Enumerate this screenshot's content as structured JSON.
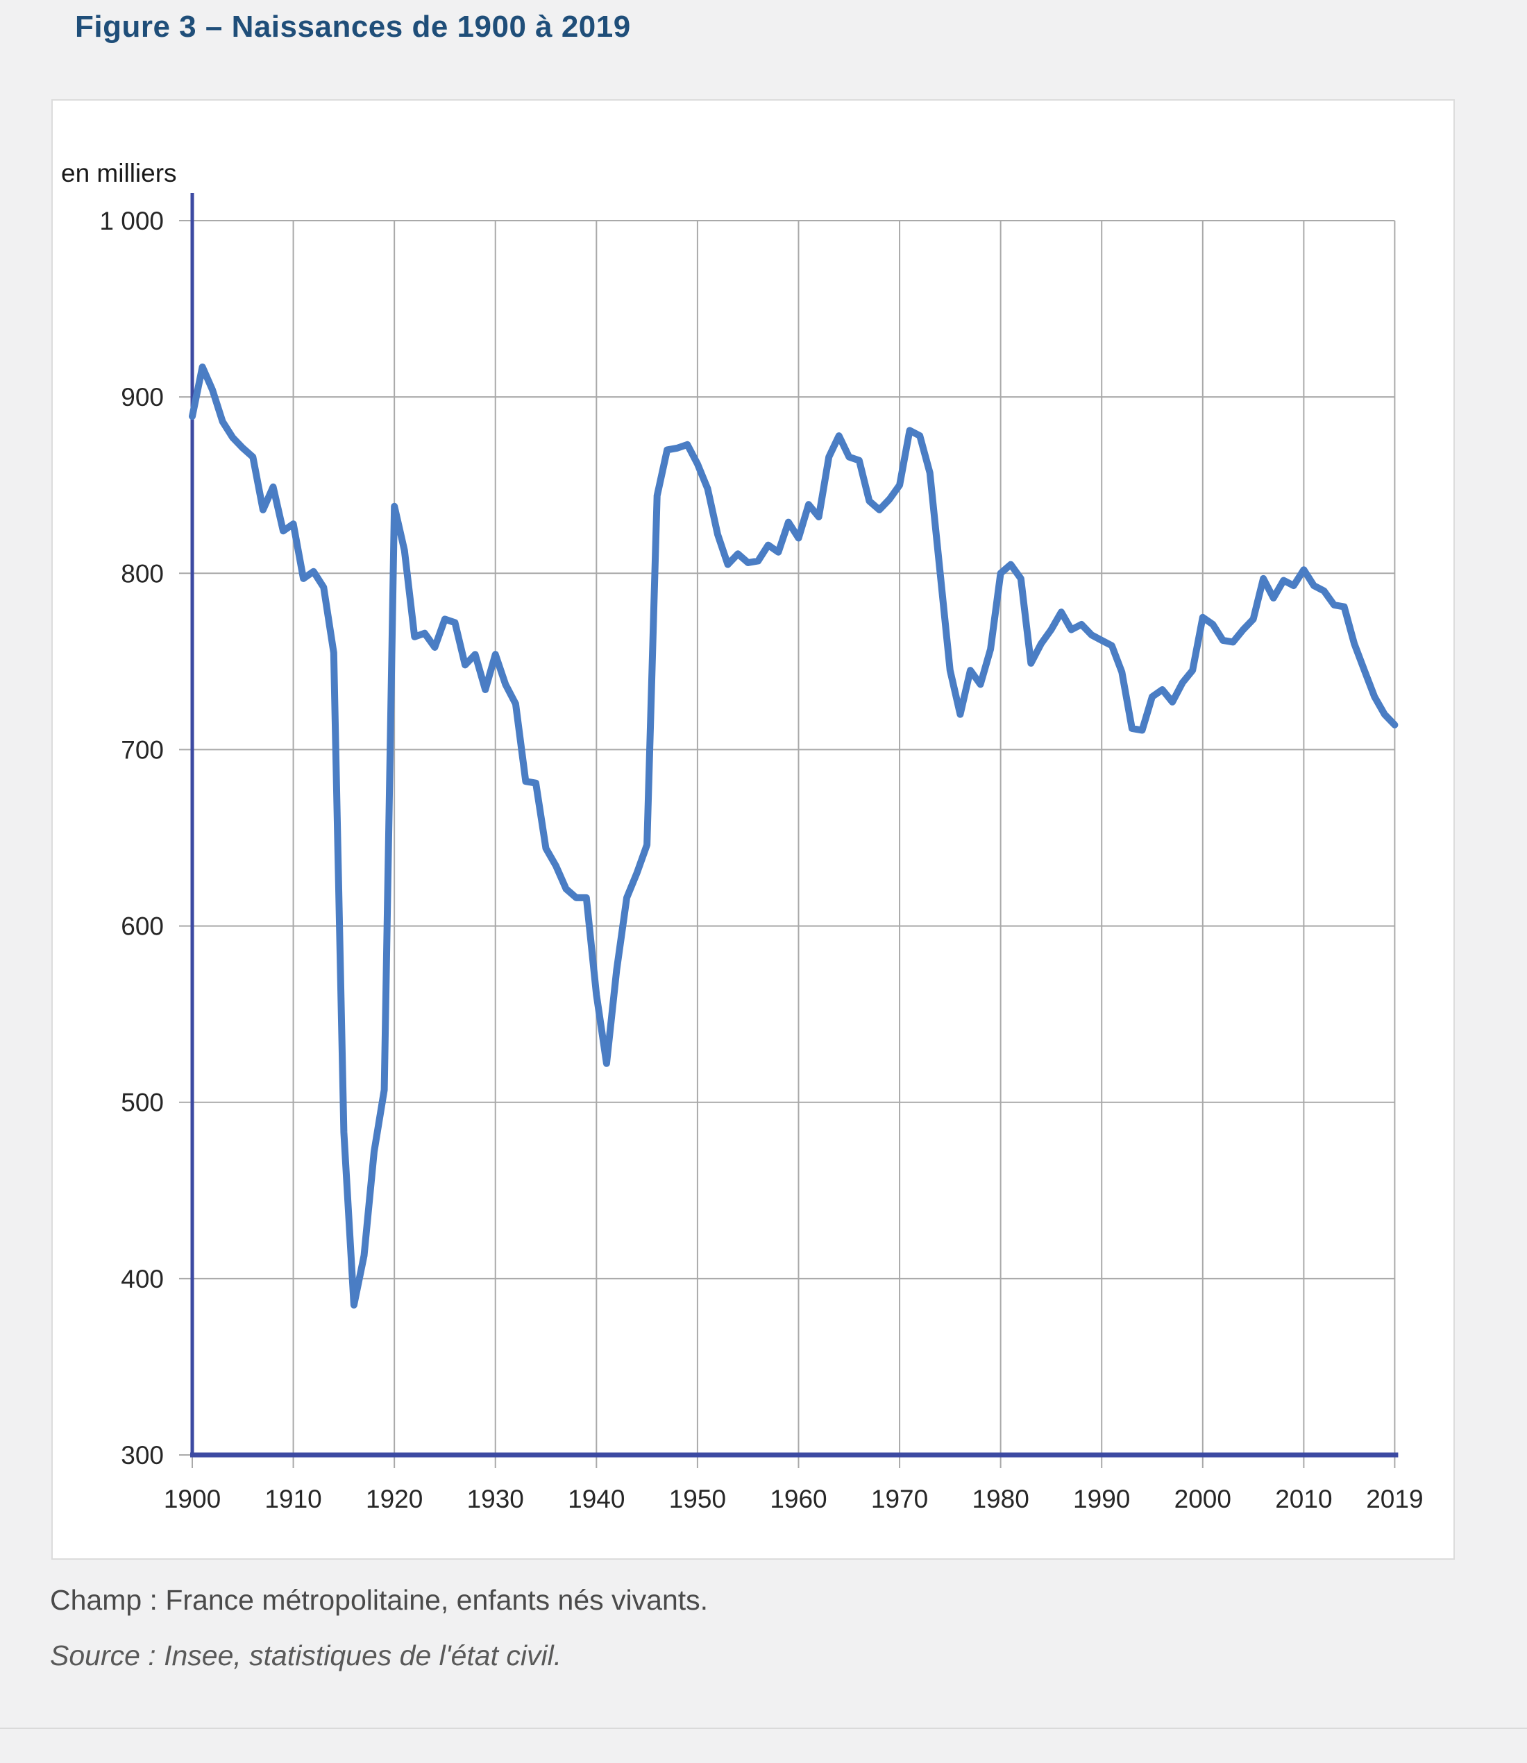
{
  "figure": {
    "title": "Figure 3 – Naissances de 1900 à 2019",
    "unit_label": "en milliers",
    "champ": "Champ : France métropolitaine, enfants nés vivants.",
    "source": "Source : Insee, statistiques de l'état civil."
  },
  "colors": {
    "page_background": "#f1f1f2",
    "panel_background": "#ffffff",
    "panel_border": "#dcdcdc",
    "title_color": "#1f4e79",
    "line_color": "#4a7dc4",
    "axis_color": "#3c4aa2",
    "grid_color": "#a9a9a9",
    "tick_label_color": "#262626"
  },
  "chart_data": {
    "type": "line",
    "title": "Naissances de 1900 à 2019",
    "ylabel": "en milliers",
    "xlabel": "",
    "grid": true,
    "legend_position": "none",
    "ylim": [
      300,
      1000
    ],
    "xlim": [
      1900,
      2019
    ],
    "yticks": [
      300,
      400,
      500,
      600,
      700,
      800,
      900,
      1000
    ],
    "ytick_labels": [
      "300",
      "400",
      "500",
      "600",
      "700",
      "800",
      "900",
      "1 000"
    ],
    "xticks": [
      1900,
      1910,
      1920,
      1930,
      1940,
      1950,
      1960,
      1970,
      1980,
      1990,
      2000,
      2010,
      2019
    ],
    "xtick_labels": [
      "1900",
      "1910",
      "1920",
      "1930",
      "1940",
      "1950",
      "1960",
      "1970",
      "1980",
      "1990",
      "2000",
      "2010",
      "2019"
    ],
    "x": [
      1900,
      1901,
      1902,
      1903,
      1904,
      1905,
      1906,
      1907,
      1908,
      1909,
      1910,
      1911,
      1912,
      1913,
      1914,
      1915,
      1916,
      1917,
      1918,
      1919,
      1920,
      1921,
      1922,
      1923,
      1924,
      1925,
      1926,
      1927,
      1928,
      1929,
      1930,
      1931,
      1932,
      1933,
      1934,
      1935,
      1936,
      1937,
      1938,
      1939,
      1940,
      1941,
      1942,
      1943,
      1944,
      1945,
      1946,
      1947,
      1948,
      1949,
      1950,
      1951,
      1952,
      1953,
      1954,
      1955,
      1956,
      1957,
      1958,
      1959,
      1960,
      1961,
      1962,
      1963,
      1964,
      1965,
      1966,
      1967,
      1968,
      1969,
      1970,
      1971,
      1972,
      1973,
      1974,
      1975,
      1976,
      1977,
      1978,
      1979,
      1980,
      1981,
      1982,
      1983,
      1984,
      1985,
      1986,
      1987,
      1988,
      1989,
      1990,
      1991,
      1992,
      1993,
      1994,
      1995,
      1996,
      1997,
      1998,
      1999,
      2000,
      2001,
      2002,
      2003,
      2004,
      2005,
      2006,
      2007,
      2008,
      2009,
      2010,
      2011,
      2012,
      2013,
      2014,
      2015,
      2016,
      2017,
      2018,
      2019
    ],
    "series": [
      {
        "name": "Naissances (en milliers)",
        "values": [
          889,
          917,
          904,
          886,
          877,
          871,
          866,
          836,
          849,
          824,
          828,
          797,
          801,
          792,
          755,
          483,
          385,
          413,
          472,
          507,
          838,
          813,
          764,
          766,
          758,
          774,
          772,
          748,
          754,
          734,
          754,
          737,
          726,
          682,
          681,
          644,
          634,
          621,
          616,
          616,
          561,
          522,
          575,
          616,
          630,
          646,
          844,
          870,
          871,
          873,
          862,
          848,
          822,
          805,
          811,
          806,
          807,
          816,
          812,
          829,
          820,
          839,
          832,
          866,
          878,
          866,
          864,
          841,
          836,
          842,
          850,
          881,
          878,
          857,
          801,
          745,
          720,
          745,
          737,
          757,
          800,
          805,
          797,
          749,
          760,
          768,
          778,
          768,
          771,
          765,
          762,
          759,
          744,
          712,
          711,
          730,
          734,
          727,
          738,
          745,
          775,
          771,
          762,
          761,
          768,
          774,
          797,
          786,
          796,
          793,
          802,
          793,
          790,
          782,
          781,
          760,
          745,
          730,
          720,
          714
        ]
      }
    ]
  }
}
